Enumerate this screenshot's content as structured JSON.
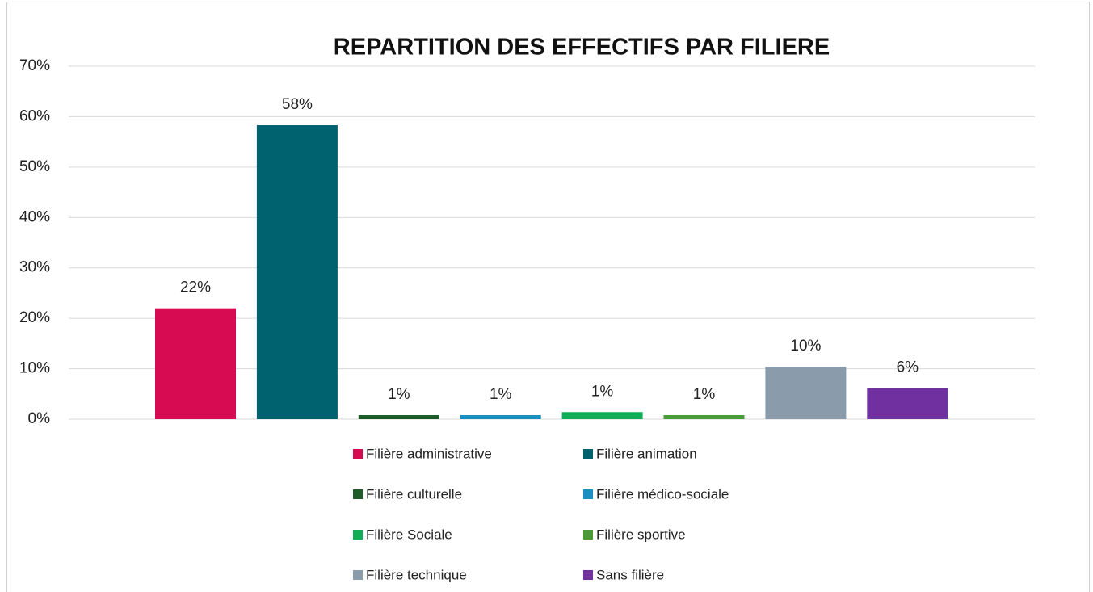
{
  "chart_data": {
    "type": "bar",
    "title": "REPARTITION DES EFFECTIFS PAR FILIERE",
    "categories": [
      "Filière administrative",
      "Filière animation",
      "Filière culturelle",
      "Filière médico-sociale",
      "Filière Sociale",
      "Filière sportive",
      "Filière technique",
      "Sans filière"
    ],
    "values": [
      22,
      58.3,
      0.8,
      0.8,
      1.4,
      0.8,
      10.4,
      6.2
    ],
    "value_labels": [
      "22%",
      "58%",
      "1%",
      "1%",
      "1%",
      "1%",
      "10%",
      "6%"
    ],
    "colors": [
      "#d60b52",
      "#00626f",
      "#1e5c2a",
      "#1a8fc0",
      "#0fad55",
      "#4a9a3a",
      "#8a9bab",
      "#7030a0"
    ],
    "ylim": [
      0,
      70
    ],
    "yticks": [
      {
        "value": 0,
        "label": "0%"
      },
      {
        "value": 10,
        "label": "10%"
      },
      {
        "value": 20,
        "label": "20%"
      },
      {
        "value": 30,
        "label": "30%"
      },
      {
        "value": 40,
        "label": "40%"
      },
      {
        "value": 50,
        "label": "50%"
      },
      {
        "value": 60,
        "label": "60%"
      },
      {
        "value": 70,
        "label": "70%"
      }
    ],
    "grid": true,
    "legend": "bottom"
  }
}
